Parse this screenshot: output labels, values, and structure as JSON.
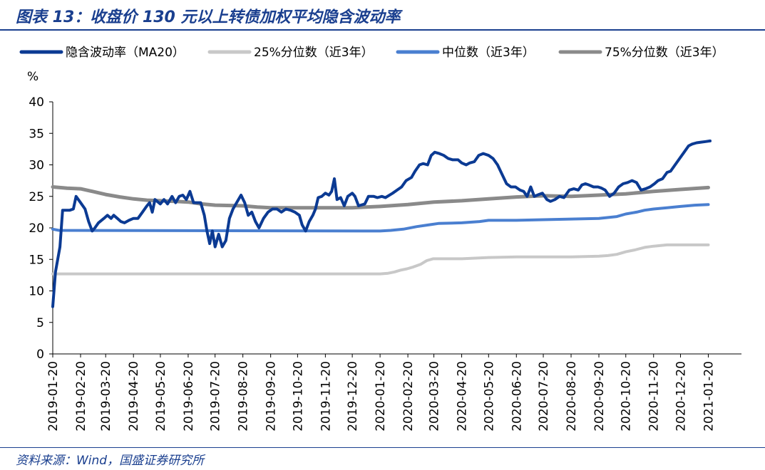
{
  "title": "图表 13：收盘价 130 元以上转债加权平均隐含波动率",
  "source": "资料来源：Wind，国盛证券研究所",
  "chart_data": {
    "type": "line",
    "ylabel": "%",
    "ylim": [
      0,
      40
    ],
    "yticks": [
      0,
      5,
      10,
      15,
      20,
      25,
      30,
      35,
      40
    ],
    "xlim": [
      "2019-01-20",
      "2021-02-26"
    ],
    "x_tick_labels": [
      "2019-01-20",
      "2019-02-20",
      "2019-03-20",
      "2019-04-20",
      "2019-05-20",
      "2019-06-20",
      "2019-07-20",
      "2019-08-20",
      "2019-09-20",
      "2019-10-20",
      "2019-11-20",
      "2019-12-20",
      "2020-01-20",
      "2020-02-20",
      "2020-03-20",
      "2020-04-20",
      "2020-05-20",
      "2020-06-20",
      "2020-07-20",
      "2020-08-20",
      "2020-09-20",
      "2020-10-20",
      "2020-11-20",
      "2020-12-20",
      "2021-01-20"
    ],
    "grid": false,
    "legend_position": "top",
    "series": [
      {
        "name": "隐含波动率（MA20）",
        "color": "#0b3a93",
        "width": 4,
        "points": [
          [
            "2019-01-20",
            7.5
          ],
          [
            "2019-01-23",
            13
          ],
          [
            "2019-01-28",
            17
          ],
          [
            "2019-01-31",
            22.8
          ],
          [
            "2019-02-08",
            22.8
          ],
          [
            "2019-02-12",
            23
          ],
          [
            "2019-02-15",
            25
          ],
          [
            "2019-02-20",
            24
          ],
          [
            "2019-02-25",
            23
          ],
          [
            "2019-03-01",
            21
          ],
          [
            "2019-03-05",
            19.5
          ],
          [
            "2019-03-08",
            20
          ],
          [
            "2019-03-12",
            20.8
          ],
          [
            "2019-03-18",
            21.5
          ],
          [
            "2019-03-22",
            22
          ],
          [
            "2019-03-26",
            21.5
          ],
          [
            "2019-03-29",
            22
          ],
          [
            "2019-04-02",
            21.5
          ],
          [
            "2019-04-06",
            21
          ],
          [
            "2019-04-10",
            20.8
          ],
          [
            "2019-04-15",
            21.2
          ],
          [
            "2019-04-20",
            21.5
          ],
          [
            "2019-04-25",
            21.5
          ],
          [
            "2019-04-30",
            22.5
          ],
          [
            "2019-05-05",
            23.5
          ],
          [
            "2019-05-08",
            24
          ],
          [
            "2019-05-11",
            22.5
          ],
          [
            "2019-05-14",
            24.5
          ],
          [
            "2019-05-20",
            23.8
          ],
          [
            "2019-05-24",
            24.5
          ],
          [
            "2019-05-28",
            23.8
          ],
          [
            "2019-06-02",
            25
          ],
          [
            "2019-06-06",
            24
          ],
          [
            "2019-06-10",
            25
          ],
          [
            "2019-06-14",
            25.2
          ],
          [
            "2019-06-18",
            24.5
          ],
          [
            "2019-06-22",
            25.8
          ],
          [
            "2019-06-26",
            24
          ],
          [
            "2019-06-30",
            24
          ],
          [
            "2019-07-04",
            24
          ],
          [
            "2019-07-08",
            22
          ],
          [
            "2019-07-11",
            19.5
          ],
          [
            "2019-07-14",
            17.5
          ],
          [
            "2019-07-17",
            19.5
          ],
          [
            "2019-07-20",
            17
          ],
          [
            "2019-07-24",
            19
          ],
          [
            "2019-07-28",
            17
          ],
          [
            "2019-08-01",
            18
          ],
          [
            "2019-08-05",
            21.5
          ],
          [
            "2019-08-09",
            23
          ],
          [
            "2019-08-13",
            24
          ],
          [
            "2019-08-18",
            25.2
          ],
          [
            "2019-08-22",
            24
          ],
          [
            "2019-08-26",
            22
          ],
          [
            "2019-08-30",
            22.5
          ],
          [
            "2019-09-03",
            21
          ],
          [
            "2019-09-07",
            20
          ],
          [
            "2019-09-12",
            21.5
          ],
          [
            "2019-09-17",
            22.5
          ],
          [
            "2019-09-22",
            23
          ],
          [
            "2019-09-27",
            23
          ],
          [
            "2019-10-02",
            22.5
          ],
          [
            "2019-10-07",
            23
          ],
          [
            "2019-10-12",
            22.8
          ],
          [
            "2019-10-17",
            22.5
          ],
          [
            "2019-10-22",
            22
          ],
          [
            "2019-10-25",
            20.5
          ],
          [
            "2019-10-29",
            19.5
          ],
          [
            "2019-11-02",
            21
          ],
          [
            "2019-11-06",
            22
          ],
          [
            "2019-11-09",
            23
          ],
          [
            "2019-11-12",
            24.8
          ],
          [
            "2019-11-16",
            25
          ],
          [
            "2019-11-20",
            25.5
          ],
          [
            "2019-11-24",
            25.2
          ],
          [
            "2019-11-27",
            25.8
          ],
          [
            "2019-11-30",
            27.8
          ],
          [
            "2019-12-03",
            24.5
          ],
          [
            "2019-12-07",
            24.8
          ],
          [
            "2019-12-11",
            23.5
          ],
          [
            "2019-12-15",
            25
          ],
          [
            "2019-12-20",
            25.5
          ],
          [
            "2019-12-23",
            25
          ],
          [
            "2019-12-27",
            23.5
          ],
          [
            "2020-01-03",
            23.8
          ],
          [
            "2020-01-07",
            25
          ],
          [
            "2020-01-13",
            25
          ],
          [
            "2020-01-17",
            24.8
          ],
          [
            "2020-01-22",
            25
          ],
          [
            "2020-01-26",
            24.8
          ],
          [
            "2020-02-03",
            25.5
          ],
          [
            "2020-02-08",
            26
          ],
          [
            "2020-02-13",
            26.5
          ],
          [
            "2020-02-18",
            27.5
          ],
          [
            "2020-02-24",
            28
          ],
          [
            "2020-02-28",
            29
          ],
          [
            "2020-03-04",
            30
          ],
          [
            "2020-03-08",
            30.2
          ],
          [
            "2020-03-13",
            30
          ],
          [
            "2020-03-17",
            31.5
          ],
          [
            "2020-03-21",
            32
          ],
          [
            "2020-03-26",
            31.8
          ],
          [
            "2020-03-31",
            31.5
          ],
          [
            "2020-04-05",
            31
          ],
          [
            "2020-04-10",
            30.8
          ],
          [
            "2020-04-16",
            30.8
          ],
          [
            "2020-04-20",
            30.3
          ],
          [
            "2020-04-25",
            30
          ],
          [
            "2020-04-29",
            30.3
          ],
          [
            "2020-05-04",
            30.5
          ],
          [
            "2020-05-09",
            31.5
          ],
          [
            "2020-05-14",
            31.8
          ],
          [
            "2020-05-20",
            31.5
          ],
          [
            "2020-05-25",
            31
          ],
          [
            "2020-05-30",
            30
          ],
          [
            "2020-06-04",
            28.5
          ],
          [
            "2020-06-09",
            27
          ],
          [
            "2020-06-14",
            26.5
          ],
          [
            "2020-06-19",
            26.5
          ],
          [
            "2020-06-24",
            26
          ],
          [
            "2020-06-28",
            25.8
          ],
          [
            "2020-07-02",
            25
          ],
          [
            "2020-07-06",
            26.5
          ],
          [
            "2020-07-10",
            25
          ],
          [
            "2020-07-15",
            25.3
          ],
          [
            "2020-07-19",
            25.5
          ],
          [
            "2020-07-24",
            24.5
          ],
          [
            "2020-07-28",
            24.2
          ],
          [
            "2020-08-02",
            24.5
          ],
          [
            "2020-08-07",
            25
          ],
          [
            "2020-08-12",
            24.8
          ],
          [
            "2020-08-18",
            26
          ],
          [
            "2020-08-23",
            26.2
          ],
          [
            "2020-08-28",
            26
          ],
          [
            "2020-09-01",
            26.8
          ],
          [
            "2020-09-05",
            27
          ],
          [
            "2020-09-09",
            26.8
          ],
          [
            "2020-09-14",
            26.5
          ],
          [
            "2020-09-19",
            26.5
          ],
          [
            "2020-09-23",
            26.3
          ],
          [
            "2020-09-27",
            26
          ],
          [
            "2020-10-02",
            25
          ],
          [
            "2020-10-07",
            25.5
          ],
          [
            "2020-10-12",
            26.5
          ],
          [
            "2020-10-17",
            27
          ],
          [
            "2020-10-22",
            27.2
          ],
          [
            "2020-10-27",
            27.5
          ],
          [
            "2020-11-01",
            27.2
          ],
          [
            "2020-11-06",
            26
          ],
          [
            "2020-11-11",
            26.2
          ],
          [
            "2020-11-16",
            26.5
          ],
          [
            "2020-11-21",
            27
          ],
          [
            "2020-11-25",
            27.5
          ],
          [
            "2020-11-30",
            27.8
          ],
          [
            "2020-12-05",
            28.8
          ],
          [
            "2020-12-09",
            29
          ],
          [
            "2020-12-14",
            30
          ],
          [
            "2020-12-19",
            31
          ],
          [
            "2020-12-24",
            32
          ],
          [
            "2020-12-29",
            33
          ],
          [
            "2021-01-02",
            33.3
          ],
          [
            "2021-01-07",
            33.5
          ],
          [
            "2021-01-12",
            33.6
          ],
          [
            "2021-01-17",
            33.7
          ],
          [
            "2021-01-22",
            33.8
          ]
        ]
      },
      {
        "name": "25%分位数（近3年）",
        "color": "#c8c8c8",
        "width": 4,
        "points": [
          [
            "2019-01-20",
            12.7
          ],
          [
            "2020-01-20",
            12.7
          ],
          [
            "2020-01-29",
            12.8
          ],
          [
            "2020-02-05",
            13
          ],
          [
            "2020-02-12",
            13.3
          ],
          [
            "2020-02-19",
            13.5
          ],
          [
            "2020-02-26",
            13.8
          ],
          [
            "2020-03-05",
            14.2
          ],
          [
            "2020-03-12",
            14.8
          ],
          [
            "2020-03-19",
            15.1
          ],
          [
            "2020-04-20",
            15.1
          ],
          [
            "2020-05-20",
            15.3
          ],
          [
            "2020-06-20",
            15.4
          ],
          [
            "2020-07-20",
            15.4
          ],
          [
            "2020-08-20",
            15.4
          ],
          [
            "2020-09-20",
            15.5
          ],
          [
            "2020-09-30",
            15.6
          ],
          [
            "2020-10-10",
            15.8
          ],
          [
            "2020-10-20",
            16.2
          ],
          [
            "2020-10-30",
            16.5
          ],
          [
            "2020-11-10",
            16.9
          ],
          [
            "2020-11-20",
            17.1
          ],
          [
            "2020-12-05",
            17.3
          ],
          [
            "2020-12-20",
            17.3
          ],
          [
            "2021-01-20",
            17.3
          ]
        ]
      },
      {
        "name": "中位数（近3年）",
        "color": "#4a7fd0",
        "width": 4,
        "points": [
          [
            "2019-01-20",
            19.8
          ],
          [
            "2019-01-27",
            19.6
          ],
          [
            "2020-01-20",
            19.5
          ],
          [
            "2020-02-01",
            19.6
          ],
          [
            "2020-02-15",
            19.8
          ],
          [
            "2020-03-01",
            20.2
          ],
          [
            "2020-03-15",
            20.5
          ],
          [
            "2020-03-25",
            20.7
          ],
          [
            "2020-04-20",
            20.8
          ],
          [
            "2020-05-10",
            21
          ],
          [
            "2020-05-20",
            21.2
          ],
          [
            "2020-06-20",
            21.2
          ],
          [
            "2020-07-20",
            21.3
          ],
          [
            "2020-08-20",
            21.4
          ],
          [
            "2020-09-20",
            21.5
          ],
          [
            "2020-10-10",
            21.8
          ],
          [
            "2020-10-20",
            22.2
          ],
          [
            "2020-11-01",
            22.5
          ],
          [
            "2020-11-10",
            22.8
          ],
          [
            "2020-11-20",
            23
          ],
          [
            "2020-12-05",
            23.2
          ],
          [
            "2020-12-20",
            23.4
          ],
          [
            "2021-01-05",
            23.6
          ],
          [
            "2021-01-20",
            23.7
          ]
        ]
      },
      {
        "name": "75%分位数（近3年）",
        "color": "#8a8a8a",
        "width": 5,
        "points": [
          [
            "2019-01-20",
            26.5
          ],
          [
            "2019-02-05",
            26.3
          ],
          [
            "2019-02-20",
            26.2
          ],
          [
            "2019-03-05",
            25.8
          ],
          [
            "2019-03-20",
            25.3
          ],
          [
            "2019-04-05",
            24.9
          ],
          [
            "2019-04-20",
            24.6
          ],
          [
            "2019-05-05",
            24.4
          ],
          [
            "2019-05-20",
            24.3
          ],
          [
            "2019-06-05",
            24.2
          ],
          [
            "2019-06-20",
            24.1
          ],
          [
            "2019-07-05",
            23.8
          ],
          [
            "2019-07-20",
            23.6
          ],
          [
            "2019-08-20",
            23.5
          ],
          [
            "2019-09-05",
            23.3
          ],
          [
            "2019-09-20",
            23.2
          ],
          [
            "2019-12-20",
            23.2
          ],
          [
            "2020-01-20",
            23.4
          ],
          [
            "2020-02-20",
            23.7
          ],
          [
            "2020-03-20",
            24.1
          ],
          [
            "2020-04-20",
            24.3
          ],
          [
            "2020-05-20",
            24.6
          ],
          [
            "2020-06-20",
            24.9
          ],
          [
            "2020-07-20",
            25.1
          ],
          [
            "2020-08-20",
            25
          ],
          [
            "2020-09-20",
            25.2
          ],
          [
            "2020-10-20",
            25.4
          ],
          [
            "2020-11-20",
            25.8
          ],
          [
            "2020-12-20",
            26.1
          ],
          [
            "2021-01-20",
            26.4
          ]
        ]
      }
    ]
  }
}
